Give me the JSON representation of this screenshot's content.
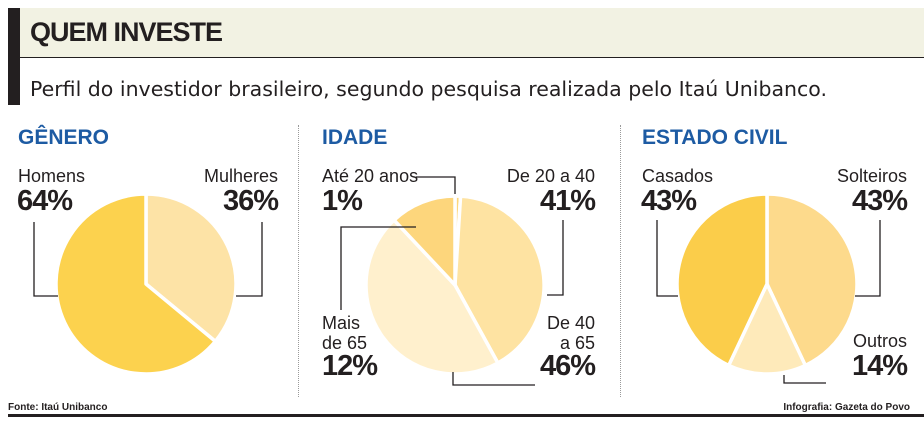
{
  "header": {
    "title": "QUEM INVESTE",
    "subtitle": "Perfil do investidor brasileiro, segundo pesquisa realizada pelo Itaú Unibanco."
  },
  "footer": {
    "source": "Fonte: Itaú Unibanco",
    "credit": "Infografia: Gazeta do Povo"
  },
  "chart_data": [
    {
      "type": "pie",
      "title": "GÊNERO",
      "slices": [
        {
          "label": "Mulheres",
          "value": 36,
          "display": "36%",
          "color": "#fde3a6"
        },
        {
          "label": "Homens",
          "value": 64,
          "display": "64%",
          "color": "#fcd24e"
        }
      ]
    },
    {
      "type": "pie",
      "title": "IDADE",
      "slices": [
        {
          "label": "Até 20 anos",
          "value": 1,
          "display": "1%",
          "color": "#fdd77c"
        },
        {
          "label": "De 20 a 40",
          "value": 41,
          "display": "41%",
          "color": "#fee3a2"
        },
        {
          "label": "De 40 a 65",
          "label_lines": [
            "De 40",
            "a 65"
          ],
          "value": 46,
          "display": "46%",
          "color": "#fff0cd"
        },
        {
          "label": "Mais de 65",
          "label_lines": [
            "Mais",
            "de 65"
          ],
          "value": 12,
          "display": "12%",
          "color": "#fdd67c"
        }
      ]
    },
    {
      "type": "pie",
      "title": "ESTADO CIVIL",
      "slices": [
        {
          "label": "Solteiros",
          "value": 43,
          "display": "43%",
          "color": "#fdda8c"
        },
        {
          "label": "Outros",
          "value": 14,
          "display": "14%",
          "color": "#feeaba"
        },
        {
          "label": "Casados",
          "value": 43,
          "display": "43%",
          "color": "#fbcd4a"
        }
      ]
    }
  ]
}
